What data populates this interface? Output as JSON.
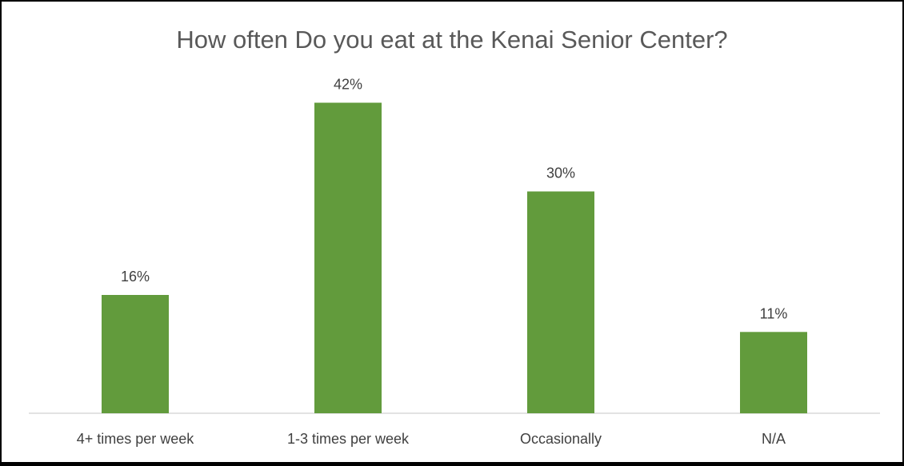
{
  "chart_data": {
    "type": "bar",
    "title": "How often Do you eat at the Kenai Senior Center?",
    "categories": [
      "4+ times per week",
      "1-3 times per week",
      "Occasionally",
      "N/A"
    ],
    "values": [
      16,
      42,
      30,
      11
    ],
    "data_labels": [
      "16%",
      "42%",
      "30%",
      "11%"
    ],
    "ylim": [
      0,
      50
    ],
    "grid": false,
    "legend": "none",
    "bar_color": "#629b3c",
    "axis_color": "#d9d9d9",
    "text_color": "#404040"
  }
}
